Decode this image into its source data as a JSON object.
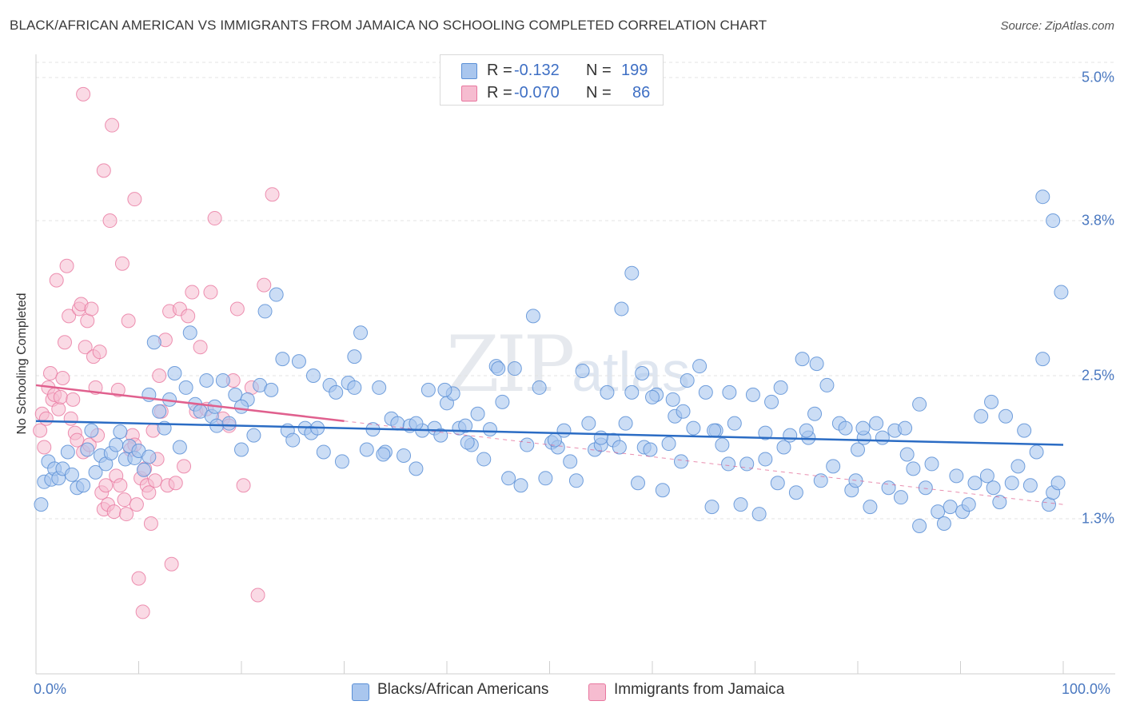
{
  "title": "BLACK/AFRICAN AMERICAN VS IMMIGRANTS FROM JAMAICA NO SCHOOLING COMPLETED CORRELATION CHART",
  "source": "Source: ZipAtlas.com",
  "watermark": {
    "main": "ZIP",
    "sub": "atlas"
  },
  "legend": {
    "r_label": "R =",
    "n_label": "N =",
    "rows": [
      {
        "r": "-0.132",
        "n": "199"
      },
      {
        "r": "-0.070",
        "n": "86"
      }
    ]
  },
  "colors": {
    "blue_fill": "#a9c6ee",
    "blue_stroke": "#5a8fd6",
    "blue_line": "#2b6cc4",
    "pink_fill": "#f6bcd0",
    "pink_stroke": "#e8779f",
    "pink_line": "#e0608e",
    "grid": "#e3e3e3",
    "tick_text": "#4a78c0"
  },
  "chart_data": {
    "type": "scatter",
    "title": "BLACK/AFRICAN AMERICAN VS IMMIGRANTS FROM JAMAICA NO SCHOOLING COMPLETED CORRELATION CHART",
    "xlabel": "",
    "ylabel": "No Schooling Completed",
    "xlim": [
      0,
      100
    ],
    "ylim": [
      0,
      5.0
    ],
    "x_tick_labels": [
      "0.0%",
      "100.0%"
    ],
    "y_ticks": [
      1.3,
      2.5,
      3.8,
      5.0
    ],
    "y_tick_labels": [
      "1.3%",
      "2.5%",
      "3.8%",
      "5.0%"
    ],
    "grid": true,
    "legend_position": "top-center",
    "series": [
      {
        "name": "Blacks/African Americans",
        "r": -0.132,
        "n": 199,
        "trend": {
          "x": [
            0,
            100
          ],
          "y": [
            2.12,
            1.92
          ]
        },
        "points": [
          [
            0.5,
            1.42
          ],
          [
            0.8,
            1.61
          ],
          [
            1.2,
            1.78
          ],
          [
            1.5,
            1.63
          ],
          [
            1.8,
            1.72
          ],
          [
            2.2,
            1.64
          ],
          [
            2.6,
            1.72
          ],
          [
            3.1,
            1.86
          ],
          [
            3.5,
            1.67
          ],
          [
            4.0,
            1.56
          ],
          [
            4.6,
            1.58
          ],
          [
            5.0,
            1.88
          ],
          [
            5.4,
            2.04
          ],
          [
            5.8,
            1.69
          ],
          [
            6.3,
            1.83
          ],
          [
            6.8,
            1.76
          ],
          [
            7.3,
            1.85
          ],
          [
            7.8,
            1.92
          ],
          [
            8.2,
            2.03
          ],
          [
            8.7,
            1.8
          ],
          [
            9.1,
            1.91
          ],
          [
            9.6,
            1.81
          ],
          [
            10.0,
            1.87
          ],
          [
            10.5,
            1.71
          ],
          [
            11.0,
            2.34
          ],
          [
            11.5,
            2.78
          ],
          [
            12.0,
            2.2
          ],
          [
            12.5,
            2.06
          ],
          [
            13.0,
            2.3
          ],
          [
            13.5,
            2.52
          ],
          [
            14.0,
            1.9
          ],
          [
            14.6,
            2.4
          ],
          [
            15.0,
            2.86
          ],
          [
            15.5,
            2.26
          ],
          [
            16.0,
            2.2
          ],
          [
            16.6,
            2.46
          ],
          [
            17.1,
            2.16
          ],
          [
            17.6,
            2.08
          ],
          [
            18.2,
            2.46
          ],
          [
            18.8,
            2.1
          ],
          [
            19.4,
            2.34
          ],
          [
            20.0,
            1.88
          ],
          [
            20.6,
            2.3
          ],
          [
            21.2,
            2.0
          ],
          [
            21.8,
            2.42
          ],
          [
            22.3,
            3.04
          ],
          [
            22.9,
            2.38
          ],
          [
            23.4,
            3.18
          ],
          [
            24.0,
            2.64
          ],
          [
            24.5,
            2.04
          ],
          [
            25.0,
            1.96
          ],
          [
            25.6,
            2.62
          ],
          [
            26.2,
            2.06
          ],
          [
            26.8,
            2.02
          ],
          [
            27.4,
            2.06
          ],
          [
            28.0,
            1.86
          ],
          [
            28.6,
            2.42
          ],
          [
            29.2,
            2.36
          ],
          [
            29.8,
            1.78
          ],
          [
            30.4,
            2.44
          ],
          [
            31.0,
            2.66
          ],
          [
            31.6,
            2.86
          ],
          [
            32.2,
            1.88
          ],
          [
            32.8,
            2.05
          ],
          [
            33.4,
            2.4
          ],
          [
            34.0,
            1.86
          ],
          [
            34.6,
            2.14
          ],
          [
            35.2,
            2.1
          ],
          [
            35.8,
            1.83
          ],
          [
            36.4,
            2.08
          ],
          [
            37.0,
            1.72
          ],
          [
            37.6,
            2.04
          ],
          [
            38.2,
            2.38
          ],
          [
            38.8,
            2.06
          ],
          [
            39.4,
            2.0
          ],
          [
            40.0,
            2.27
          ],
          [
            40.6,
            2.35
          ],
          [
            41.2,
            2.06
          ],
          [
            41.8,
            2.08
          ],
          [
            42.4,
            1.92
          ],
          [
            43.0,
            2.18
          ],
          [
            43.6,
            1.8
          ],
          [
            44.2,
            2.05
          ],
          [
            44.8,
            2.58
          ],
          [
            45.4,
            2.28
          ],
          [
            46.0,
            1.64
          ],
          [
            46.6,
            2.56
          ],
          [
            47.2,
            1.58
          ],
          [
            47.8,
            1.92
          ],
          [
            48.4,
            3.0
          ],
          [
            49.0,
            2.4
          ],
          [
            49.6,
            1.64
          ],
          [
            50.2,
            1.94
          ],
          [
            50.8,
            1.9
          ],
          [
            51.4,
            2.04
          ],
          [
            52.0,
            1.78
          ],
          [
            52.6,
            1.62
          ],
          [
            53.2,
            2.54
          ],
          [
            53.8,
            2.1
          ],
          [
            54.4,
            1.88
          ],
          [
            55.0,
            1.92
          ],
          [
            55.6,
            2.36
          ],
          [
            56.2,
            1.96
          ],
          [
            56.8,
            1.9
          ],
          [
            57.4,
            2.1
          ],
          [
            58.0,
            2.36
          ],
          [
            58.6,
            1.6
          ],
          [
            59.2,
            1.9
          ],
          [
            59.8,
            1.88
          ],
          [
            60.4,
            2.34
          ],
          [
            61.0,
            1.54
          ],
          [
            61.6,
            1.93
          ],
          [
            62.2,
            2.16
          ],
          [
            62.8,
            1.78
          ],
          [
            63.4,
            2.46
          ],
          [
            64.0,
            2.06
          ],
          [
            64.6,
            2.58
          ],
          [
            65.2,
            2.36
          ],
          [
            65.8,
            1.4
          ],
          [
            66.2,
            2.04
          ],
          [
            66.8,
            1.92
          ],
          [
            67.4,
            1.76
          ],
          [
            68.0,
            2.1
          ],
          [
            68.6,
            1.42
          ],
          [
            69.2,
            1.76
          ],
          [
            69.8,
            2.34
          ],
          [
            70.4,
            1.34
          ],
          [
            71.0,
            1.8
          ],
          [
            71.6,
            2.28
          ],
          [
            72.2,
            1.6
          ],
          [
            72.8,
            1.9
          ],
          [
            73.4,
            2.0
          ],
          [
            74.0,
            1.52
          ],
          [
            74.6,
            2.64
          ],
          [
            75.2,
            1.98
          ],
          [
            75.8,
            2.18
          ],
          [
            76.4,
            1.62
          ],
          [
            77.0,
            2.42
          ],
          [
            77.6,
            1.74
          ],
          [
            78.2,
            2.1
          ],
          [
            78.8,
            2.06
          ],
          [
            79.4,
            1.54
          ],
          [
            80.0,
            1.88
          ],
          [
            80.6,
            1.98
          ],
          [
            81.2,
            1.4
          ],
          [
            81.8,
            2.1
          ],
          [
            82.4,
            1.98
          ],
          [
            83.0,
            1.56
          ],
          [
            83.6,
            2.04
          ],
          [
            84.2,
            1.48
          ],
          [
            84.8,
            1.84
          ],
          [
            85.4,
            1.72
          ],
          [
            86.0,
            2.26
          ],
          [
            86.6,
            1.56
          ],
          [
            87.2,
            1.76
          ],
          [
            87.8,
            1.36
          ],
          [
            88.4,
            1.26
          ],
          [
            89.0,
            1.4
          ],
          [
            89.6,
            1.66
          ],
          [
            90.2,
            1.36
          ],
          [
            90.8,
            1.42
          ],
          [
            91.4,
            1.6
          ],
          [
            92.0,
            2.16
          ],
          [
            92.6,
            1.66
          ],
          [
            93.2,
            1.56
          ],
          [
            93.8,
            1.44
          ],
          [
            94.4,
            2.16
          ],
          [
            95.0,
            1.6
          ],
          [
            95.6,
            1.74
          ],
          [
            96.2,
            2.04
          ],
          [
            96.8,
            1.58
          ],
          [
            97.4,
            1.86
          ],
          [
            98.0,
            2.64
          ],
          [
            98.6,
            1.42
          ],
          [
            99.0,
            1.52
          ],
          [
            99.5,
            1.6
          ],
          [
            50.5,
            1.96
          ],
          [
            33.8,
            1.84
          ],
          [
            17.4,
            2.24
          ],
          [
            84.6,
            2.06
          ],
          [
            62.0,
            2.3
          ],
          [
            75.0,
            2.04
          ],
          [
            39.8,
            2.38
          ],
          [
            55.0,
            1.98
          ],
          [
            71.0,
            2.02
          ],
          [
            59.0,
            2.52
          ],
          [
            31.0,
            2.4
          ],
          [
            57.0,
            3.06
          ],
          [
            66.0,
            2.04
          ],
          [
            45.0,
            2.56
          ],
          [
            20.0,
            2.24
          ],
          [
            42.0,
            1.94
          ],
          [
            37.0,
            2.1
          ],
          [
            86.0,
            1.24
          ],
          [
            80.5,
            2.06
          ],
          [
            63.0,
            2.2
          ],
          [
            76.0,
            2.6
          ],
          [
            93.0,
            2.28
          ],
          [
            11.0,
            1.82
          ],
          [
            27.0,
            2.5
          ],
          [
            99.0,
            3.8
          ],
          [
            98.0,
            4.0
          ],
          [
            99.8,
            3.2
          ],
          [
            58.0,
            3.36
          ],
          [
            60.0,
            2.32
          ],
          [
            67.5,
            2.36
          ],
          [
            72.5,
            2.4
          ],
          [
            79.8,
            1.62
          ]
        ]
      },
      {
        "name": "Immigrants from Jamaica",
        "r": -0.07,
        "n": 86,
        "trend": {
          "x": [
            0,
            30
          ],
          "y": [
            2.42,
            2.12
          ]
        },
        "trend_extended": {
          "x": [
            30,
            100
          ],
          "y": [
            2.12,
            1.42
          ]
        },
        "points": [
          [
            0.4,
            2.04
          ],
          [
            0.6,
            2.18
          ],
          [
            0.8,
            1.9
          ],
          [
            1.0,
            2.14
          ],
          [
            1.2,
            2.4
          ],
          [
            1.4,
            2.52
          ],
          [
            1.6,
            2.3
          ],
          [
            1.8,
            2.34
          ],
          [
            2.0,
            3.3
          ],
          [
            2.2,
            2.22
          ],
          [
            2.4,
            2.32
          ],
          [
            2.6,
            2.48
          ],
          [
            2.8,
            2.78
          ],
          [
            3.0,
            3.42
          ],
          [
            3.2,
            3.0
          ],
          [
            3.4,
            2.14
          ],
          [
            3.6,
            2.3
          ],
          [
            3.8,
            2.02
          ],
          [
            4.0,
            1.96
          ],
          [
            4.2,
            3.06
          ],
          [
            4.4,
            3.1
          ],
          [
            4.6,
            1.86
          ],
          [
            4.8,
            2.74
          ],
          [
            5.0,
            2.96
          ],
          [
            5.2,
            1.92
          ],
          [
            5.4,
            3.06
          ],
          [
            5.6,
            2.66
          ],
          [
            5.8,
            2.4
          ],
          [
            6.0,
            2.0
          ],
          [
            6.2,
            2.7
          ],
          [
            6.4,
            1.52
          ],
          [
            6.6,
            1.38
          ],
          [
            6.8,
            1.58
          ],
          [
            7.0,
            1.42
          ],
          [
            7.2,
            3.8
          ],
          [
            7.4,
            4.6
          ],
          [
            7.6,
            1.36
          ],
          [
            7.8,
            1.66
          ],
          [
            8.0,
            2.38
          ],
          [
            8.2,
            1.58
          ],
          [
            8.4,
            3.44
          ],
          [
            8.6,
            1.46
          ],
          [
            8.8,
            1.34
          ],
          [
            9.0,
            2.96
          ],
          [
            9.2,
            1.88
          ],
          [
            9.4,
            2.0
          ],
          [
            9.6,
            1.92
          ],
          [
            9.8,
            1.42
          ],
          [
            10.0,
            0.8
          ],
          [
            10.2,
            1.64
          ],
          [
            10.4,
            0.52
          ],
          [
            10.6,
            1.72
          ],
          [
            10.8,
            1.58
          ],
          [
            11.0,
            1.52
          ],
          [
            11.2,
            1.26
          ],
          [
            11.4,
            2.04
          ],
          [
            11.6,
            1.62
          ],
          [
            11.8,
            1.8
          ],
          [
            12.0,
            2.5
          ],
          [
            12.2,
            2.2
          ],
          [
            12.6,
            2.8
          ],
          [
            12.8,
            1.58
          ],
          [
            13.0,
            3.04
          ],
          [
            13.2,
            0.92
          ],
          [
            13.6,
            1.6
          ],
          [
            14.0,
            3.06
          ],
          [
            14.4,
            1.74
          ],
          [
            14.8,
            3.0
          ],
          [
            15.2,
            3.2
          ],
          [
            15.6,
            2.2
          ],
          [
            16.0,
            2.74
          ],
          [
            16.6,
            2.22
          ],
          [
            17.0,
            3.2
          ],
          [
            17.4,
            3.82
          ],
          [
            18.2,
            2.14
          ],
          [
            18.8,
            2.08
          ],
          [
            19.2,
            2.46
          ],
          [
            19.6,
            3.06
          ],
          [
            20.2,
            1.58
          ],
          [
            21.0,
            2.4
          ],
          [
            21.6,
            0.66
          ],
          [
            22.2,
            3.26
          ],
          [
            23.0,
            4.02
          ],
          [
            4.6,
            4.86
          ],
          [
            6.6,
            4.22
          ],
          [
            9.6,
            3.98
          ]
        ]
      }
    ]
  },
  "bottom_legend": [
    {
      "label": "Blacks/African Americans"
    },
    {
      "label": "Immigrants from Jamaica"
    }
  ]
}
